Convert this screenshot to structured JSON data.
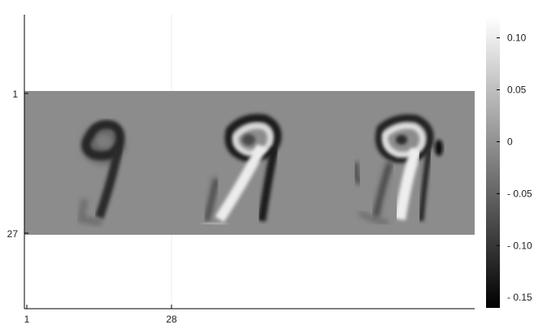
{
  "chart_data": {
    "type": "heatmap",
    "colormap": "grayscale",
    "x_ticks": [
      "1",
      "28"
    ],
    "y_ticks": [
      "1",
      "27"
    ],
    "colorbar": {
      "range": [
        -0.16,
        0.12
      ],
      "tick_values": [
        0.1,
        0.05,
        0,
        -0.05,
        -0.1,
        -0.15
      ],
      "tick_labels": [
        "0.10",
        "0.05",
        "0",
        "- 0.05",
        "- 0.10",
        "- 0.15"
      ]
    },
    "background_value": 0,
    "panels": [
      {
        "digit": "9",
        "style": "dark"
      },
      {
        "digit": "9",
        "style": "dark-outline-light-fill"
      },
      {
        "digit": "9",
        "style": "light-fill-dark-edges"
      }
    ],
    "grid": true
  },
  "colors": {
    "background": "#ffffff",
    "heatmap_zero_gray": "#8c8c8c",
    "axis": "#000000",
    "grid": "#ececec"
  }
}
